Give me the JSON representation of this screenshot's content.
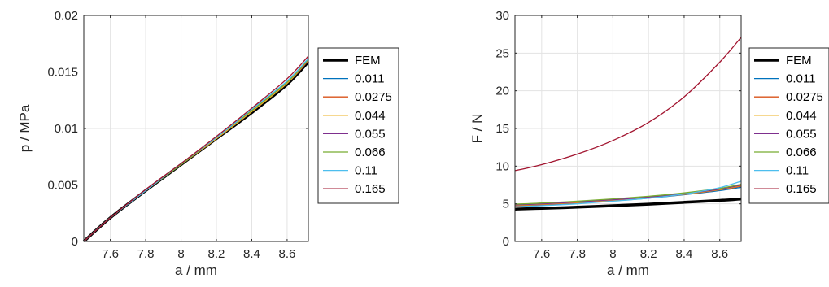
{
  "chart_data": [
    {
      "type": "line",
      "xlabel": "a / mm",
      "ylabel": "p / MPa",
      "xlim": [
        7.45,
        8.72
      ],
      "ylim": [
        0,
        0.02
      ],
      "xticks": [
        7.6,
        7.8,
        8,
        8.2,
        8.4,
        8.6
      ],
      "xtick_labels": [
        "7.6",
        "7.8",
        "8",
        "8.2",
        "8.4",
        "8.6"
      ],
      "yticks": [
        0,
        0.005,
        0.01,
        0.015,
        0.02
      ],
      "ytick_labels": [
        "0",
        "0.005",
        "0.01",
        "0.015",
        "0.02"
      ],
      "grid": true,
      "legend": "outside right",
      "series": [
        {
          "name": "FEM",
          "color": "#000000",
          "width": 3,
          "x": [
            7.45,
            7.6,
            7.8,
            8.0,
            8.2,
            8.4,
            8.6,
            8.72
          ],
          "y": [
            0,
            0.0021,
            0.0045,
            0.0068,
            0.0091,
            0.0114,
            0.0139,
            0.0159
          ]
        },
        {
          "name": "0.011",
          "color": "#0072BD",
          "width": 1,
          "x": [
            7.45,
            7.6,
            7.8,
            8.0,
            8.2,
            8.4,
            8.6,
            8.72
          ],
          "y": [
            0,
            0.0021,
            0.0045,
            0.0068,
            0.0091,
            0.0115,
            0.014,
            0.016
          ]
        },
        {
          "name": "0.0275",
          "color": "#D95319",
          "width": 1,
          "x": [
            7.45,
            7.6,
            7.8,
            8.0,
            8.2,
            8.4,
            8.6,
            8.72
          ],
          "y": [
            0,
            0.0021,
            0.0045,
            0.0068,
            0.0091,
            0.0115,
            0.014,
            0.016
          ]
        },
        {
          "name": "0.044",
          "color": "#EDB120",
          "width": 1,
          "x": [
            7.45,
            7.6,
            7.8,
            8.0,
            8.2,
            8.4,
            8.6,
            8.72
          ],
          "y": [
            0,
            0.0021,
            0.0045,
            0.0068,
            0.0091,
            0.0115,
            0.014,
            0.0161
          ]
        },
        {
          "name": "0.055",
          "color": "#7E2F8E",
          "width": 1,
          "x": [
            7.45,
            7.6,
            7.8,
            8.0,
            8.2,
            8.4,
            8.6,
            8.72
          ],
          "y": [
            0,
            0.0021,
            0.0045,
            0.0068,
            0.0092,
            0.0116,
            0.0141,
            0.0161
          ]
        },
        {
          "name": "0.066",
          "color": "#77AC30",
          "width": 1,
          "x": [
            7.45,
            7.6,
            7.8,
            8.0,
            8.2,
            8.4,
            8.6,
            8.72
          ],
          "y": [
            0,
            0.0021,
            0.0045,
            0.0068,
            0.0092,
            0.0116,
            0.0141,
            0.0161
          ]
        },
        {
          "name": "0.11",
          "color": "#4DBEEE",
          "width": 1,
          "x": [
            7.45,
            7.6,
            7.8,
            8.0,
            8.2,
            8.4,
            8.6,
            8.72
          ],
          "y": [
            0,
            0.0021,
            0.0045,
            0.0069,
            0.0092,
            0.0117,
            0.0142,
            0.0162
          ]
        },
        {
          "name": "0.165",
          "color": "#A2142F",
          "width": 1,
          "x": [
            7.45,
            7.6,
            7.8,
            8.0,
            8.2,
            8.4,
            8.6,
            8.72
          ],
          "y": [
            0,
            0.0021,
            0.0046,
            0.0069,
            0.0093,
            0.0118,
            0.0144,
            0.0164
          ]
        }
      ]
    },
    {
      "type": "line",
      "xlabel": "a / mm",
      "ylabel": "F / N",
      "xlim": [
        7.45,
        8.72
      ],
      "ylim": [
        0,
        30
      ],
      "xticks": [
        7.6,
        7.8,
        8,
        8.2,
        8.4,
        8.6
      ],
      "xtick_labels": [
        "7.6",
        "7.8",
        "8",
        "8.2",
        "8.4",
        "8.6"
      ],
      "yticks": [
        0,
        5,
        10,
        15,
        20,
        25,
        30
      ],
      "ytick_labels": [
        "0",
        "5",
        "10",
        "15",
        "20",
        "25",
        "30"
      ],
      "grid": true,
      "legend": "outside right",
      "series": [
        {
          "name": "FEM",
          "color": "#000000",
          "width": 3,
          "x": [
            7.45,
            7.6,
            7.8,
            8.0,
            8.2,
            8.4,
            8.6,
            8.72
          ],
          "y": [
            4.3,
            4.4,
            4.55,
            4.75,
            4.95,
            5.2,
            5.45,
            5.65
          ]
        },
        {
          "name": "0.011",
          "color": "#0072BD",
          "width": 1,
          "x": [
            7.45,
            7.6,
            7.8,
            8.0,
            8.2,
            8.4,
            8.6,
            8.72
          ],
          "y": [
            4.7,
            4.85,
            5.1,
            5.4,
            5.75,
            6.2,
            6.75,
            7.2
          ]
        },
        {
          "name": "0.0275",
          "color": "#D95319",
          "width": 1,
          "x": [
            7.45,
            7.6,
            7.8,
            8.0,
            8.2,
            8.4,
            8.6,
            8.72
          ],
          "y": [
            4.75,
            4.9,
            5.15,
            5.45,
            5.8,
            6.25,
            6.85,
            7.35
          ]
        },
        {
          "name": "0.044",
          "color": "#EDB120",
          "width": 1,
          "x": [
            7.45,
            7.6,
            7.8,
            8.0,
            8.2,
            8.4,
            8.6,
            8.72
          ],
          "y": [
            4.8,
            4.95,
            5.2,
            5.5,
            5.85,
            6.3,
            6.9,
            7.45
          ]
        },
        {
          "name": "0.055",
          "color": "#7E2F8E",
          "width": 1,
          "x": [
            7.45,
            7.6,
            7.8,
            8.0,
            8.2,
            8.4,
            8.6,
            8.72
          ],
          "y": [
            4.85,
            5.0,
            5.25,
            5.55,
            5.9,
            6.35,
            6.95,
            7.5
          ]
        },
        {
          "name": "0.066",
          "color": "#77AC30",
          "width": 1,
          "x": [
            7.45,
            7.6,
            7.8,
            8.0,
            8.2,
            8.4,
            8.6,
            8.72
          ],
          "y": [
            4.95,
            5.1,
            5.35,
            5.65,
            6.0,
            6.45,
            7.05,
            7.6
          ]
        },
        {
          "name": "0.11",
          "color": "#4DBEEE",
          "width": 1,
          "x": [
            7.45,
            7.6,
            7.8,
            8.0,
            8.2,
            8.4,
            8.6,
            8.72
          ],
          "y": [
            4.6,
            4.75,
            5.0,
            5.35,
            5.75,
            6.3,
            7.15,
            8.0
          ]
        },
        {
          "name": "0.165",
          "color": "#A2142F",
          "width": 1,
          "x": [
            7.45,
            7.6,
            7.8,
            8.0,
            8.2,
            8.4,
            8.6,
            8.72
          ],
          "y": [
            9.4,
            10.2,
            11.6,
            13.4,
            15.8,
            19.2,
            23.8,
            27.1
          ]
        }
      ]
    }
  ]
}
